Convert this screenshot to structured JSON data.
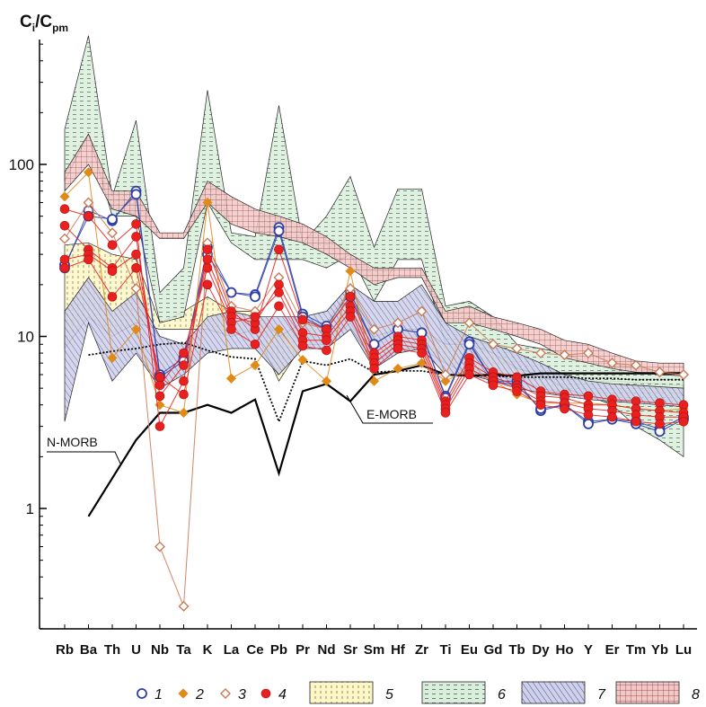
{
  "chart_data": {
    "type": "line",
    "scale": "log",
    "y_title": {
      "main": "C",
      "sub1": "i",
      "sep": "/C",
      "sub2": "pm"
    },
    "ylim": [
      0.2,
      500
    ],
    "y_ticks": [
      {
        "value": 1,
        "label": "1"
      },
      {
        "value": 10,
        "label": "10"
      },
      {
        "value": 100,
        "label": "100"
      }
    ],
    "categories": [
      "Rb",
      "Ba",
      "Th",
      "U",
      "Nb",
      "Ta",
      "K",
      "La",
      "Ce",
      "Pb",
      "Pr",
      "Nd",
      "Sr",
      "Sm",
      "Hf",
      "Zr",
      "Ti",
      "Eu",
      "Gd",
      "Tb",
      "Dy",
      "Ho",
      "Y",
      "Er",
      "Tm",
      "Yb",
      "Lu"
    ],
    "reference_lines": [
      {
        "name": "N-MORB",
        "style": "solid",
        "values": [
          null,
          0.9,
          1.5,
          2.5,
          3.6,
          3.6,
          4.0,
          3.6,
          4.3,
          1.6,
          4.8,
          5.3,
          4.2,
          6.0,
          6.3,
          6.8,
          6.0,
          5.9,
          6.0,
          5.9,
          6.1,
          6.1,
          6.1,
          6.1,
          6.1,
          6.1,
          6.1
        ]
      },
      {
        "name": "E-MORB",
        "style": "dotted",
        "values": [
          null,
          7.8,
          8.2,
          8.5,
          9.0,
          9.2,
          8.3,
          7.6,
          7.4,
          3.2,
          7.2,
          6.8,
          7.4,
          6.2,
          6.3,
          6.3,
          6.0,
          5.9,
          5.9,
          5.8,
          5.8,
          5.8,
          5.7,
          5.7,
          5.6,
          5.6,
          5.6
        ]
      }
    ],
    "fields": [
      {
        "id": "5",
        "color": "#fff8c4",
        "pattern": "dots",
        "upper": [
          34,
          35,
          30,
          28,
          12,
          14,
          17,
          14,
          14,
          10,
          12,
          12,
          19,
          10,
          11,
          11,
          9,
          9.5,
          9,
          6.6,
          5.9,
          5.7,
          5.5,
          5.5,
          5.4,
          5.3,
          5.2
        ],
        "lower": [
          8.5,
          13,
          10,
          12,
          11,
          11,
          11,
          10,
          11,
          5.5,
          9,
          9,
          12,
          7,
          8.5,
          8.5,
          7,
          6,
          6,
          5.5,
          5,
          4.7,
          4.5,
          4.3,
          4.2,
          4.1,
          4.0
        ]
      },
      {
        "id": "6",
        "color": "#dbeedd",
        "pattern": "dashes",
        "upper": [
          160,
          560,
          65,
          180,
          18,
          25,
          270,
          40,
          38,
          220,
          35,
          50,
          85,
          33,
          72,
          72,
          15,
          16,
          13,
          9,
          8.5,
          8,
          7,
          7,
          6.5,
          6.3,
          6.2
        ],
        "lower": [
          80,
          150,
          50,
          50,
          12,
          13,
          60,
          35,
          28,
          28,
          28,
          25,
          30,
          16,
          28,
          28,
          9,
          9,
          8,
          6.5,
          6,
          5,
          4.5,
          4,
          3,
          2.5,
          2.0
        ]
      },
      {
        "id": "7",
        "color": "#cfd0ea",
        "pattern": "hatch",
        "upper": [
          14,
          22,
          14,
          18,
          10,
          9,
          13,
          14,
          13,
          13,
          13,
          14,
          20,
          16,
          16,
          20,
          12,
          10,
          9,
          8,
          7,
          6,
          5.5,
          5.3,
          5.2,
          5.1,
          5.0
        ],
        "lower": [
          3.2,
          12,
          5.5,
          8,
          5,
          6,
          8,
          8.5,
          8.5,
          6,
          8.5,
          8.5,
          11,
          6.5,
          8,
          8.5,
          6,
          6,
          5.5,
          5,
          4.7,
          4.5,
          4.3,
          4.2,
          4.1,
          4.0,
          3.9
        ]
      },
      {
        "id": "8",
        "color": "#f4c7c7",
        "pattern": "grid",
        "upper": [
          90,
          150,
          70,
          70,
          40,
          40,
          80,
          65,
          55,
          50,
          45,
          38,
          30,
          25,
          25,
          25,
          14,
          15,
          13,
          12,
          11,
          9.5,
          9,
          8,
          7.2,
          7.0,
          7.0
        ],
        "lower": [
          70,
          100,
          55,
          50,
          37,
          37,
          60,
          45,
          40,
          38,
          35,
          30,
          25,
          20,
          22,
          22,
          12,
          12,
          11,
          10,
          9,
          7.5,
          7,
          6.5,
          6.2,
          6.0,
          5.9
        ]
      }
    ],
    "series": [
      {
        "id": "1",
        "name": "1",
        "marker": "open-circle",
        "color": "#2f3fa8",
        "samples": [
          [
            25,
            54,
            47,
            70,
            6,
            7.5,
            30,
            18,
            17.5,
            43,
            13.5,
            11.5,
            18,
            9,
            11,
            10.5,
            4.5,
            9.3,
            5.5,
            5.5,
            3.7,
            4.0,
            3.2,
            3.3,
            3.2,
            2.9,
            3.4
          ],
          [
            26,
            50,
            48,
            67,
            5.8,
            7.2,
            33,
            18,
            17,
            41,
            13,
            11,
            17,
            9,
            11,
            10.5,
            4.4,
            9.0,
            5.5,
            5.2,
            3.8,
            4.0,
            3.1,
            3.3,
            3.1,
            2.8,
            3.3
          ]
        ]
      },
      {
        "id": "2",
        "name": "2",
        "marker": "filled-diamond",
        "color": "#e08a18",
        "samples": [
          [
            65,
            90,
            7.5,
            11,
            4,
            3.6,
            60,
            5.7,
            6.8,
            11,
            7.3,
            5.5,
            24,
            5.5,
            6.5,
            7,
            5.5,
            6.5,
            5.5,
            4.6,
            4.1,
            4.1,
            4.1,
            4.0,
            3.8,
            3.7,
            3.8
          ]
        ]
      },
      {
        "id": "3",
        "name": "3",
        "marker": "open-diamond",
        "color": "#c97a55",
        "samples": [
          [
            37,
            60,
            40,
            19,
            0.6,
            0.27,
            35,
            15,
            14,
            22,
            12,
            11,
            19,
            11,
            12,
            14,
            6,
            12,
            9,
            8.5,
            8,
            7.8,
            8,
            7,
            6.8,
            6.2,
            6.0
          ]
        ]
      },
      {
        "id": "4",
        "name": "4",
        "marker": "filled-circle",
        "color": "#e82020",
        "samples": [
          [
            55,
            50,
            34,
            45,
            3,
            5.5,
            32,
            14,
            11,
            32,
            12.5,
            11,
            17,
            8,
            10,
            9.5,
            4.2,
            7.5,
            6.2,
            5.8,
            4.8,
            4.6,
            4.5,
            4.3,
            4.2,
            4.1,
            4.0
          ],
          [
            44,
            32,
            25,
            38,
            4.5,
            6.8,
            28,
            13,
            12,
            20,
            10.5,
            10,
            15,
            7.5,
            9.5,
            9,
            4.0,
            7.0,
            5.8,
            5.2,
            4.5,
            4.4,
            4.0,
            4.0,
            3.8,
            3.7,
            3.6
          ],
          [
            28,
            30,
            24,
            30,
            5.2,
            8,
            25,
            12,
            13,
            18,
            9.5,
            9.5,
            14,
            7,
            9,
            8.5,
            3.8,
            6.5,
            5.5,
            5,
            4.2,
            4.1,
            3.8,
            3.7,
            3.5,
            3.4,
            3.4
          ],
          [
            25,
            28,
            17,
            25,
            5.8,
            4.6,
            20,
            11,
            9,
            15,
            8.8,
            8.3,
            13,
            6.5,
            8.5,
            8,
            3.6,
            6.0,
            5.2,
            4.8,
            4.0,
            3.8,
            3.5,
            3.4,
            3.2,
            3.1,
            3.2
          ]
        ]
      }
    ],
    "annotations": [
      {
        "text": "N-MORB",
        "points_to": "N-MORB"
      },
      {
        "text": "E-MORB",
        "points_to": "E-MORB"
      }
    ],
    "legend": {
      "placement": "bottom",
      "items": [
        {
          "label": "1",
          "kind": "marker",
          "ref": "1"
        },
        {
          "label": "2",
          "kind": "marker",
          "ref": "2"
        },
        {
          "label": "3",
          "kind": "marker",
          "ref": "3"
        },
        {
          "label": "4",
          "kind": "marker",
          "ref": "4"
        },
        {
          "label": "5",
          "kind": "field",
          "ref": "5"
        },
        {
          "label": "6",
          "kind": "field",
          "ref": "6"
        },
        {
          "label": "7",
          "kind": "field",
          "ref": "7"
        },
        {
          "label": "8",
          "kind": "field",
          "ref": "8"
        }
      ]
    }
  }
}
